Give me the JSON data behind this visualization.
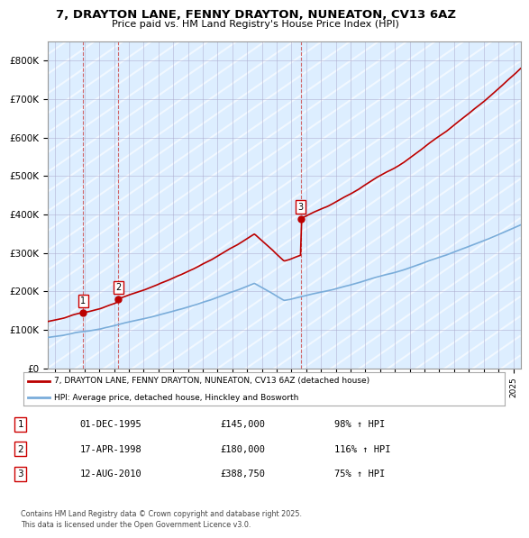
{
  "title": "7, DRAYTON LANE, FENNY DRAYTON, NUNEATON, CV13 6AZ",
  "subtitle": "Price paid vs. HM Land Registry's House Price Index (HPI)",
  "ylim": [
    0,
    850000
  ],
  "yticks": [
    0,
    100000,
    200000,
    300000,
    400000,
    500000,
    600000,
    700000,
    800000
  ],
  "ytick_labels": [
    "£0",
    "£100K",
    "£200K",
    "£300K",
    "£400K",
    "£500K",
    "£600K",
    "£700K",
    "£800K"
  ],
  "xmin": 1993.5,
  "xmax": 2025.5,
  "sales": [
    {
      "date_num": 1995.92,
      "price": 145000,
      "label": "1"
    },
    {
      "date_num": 1998.29,
      "price": 180000,
      "label": "2"
    },
    {
      "date_num": 2010.62,
      "price": 388750,
      "label": "3"
    }
  ],
  "sale_color": "#bb0000",
  "hpi_color": "#7aadda",
  "legend_sale": "7, DRAYTON LANE, FENNY DRAYTON, NUNEATON, CV13 6AZ (detached house)",
  "legend_hpi": "HPI: Average price, detached house, Hinckley and Bosworth",
  "table_rows": [
    {
      "num": "1",
      "date": "01-DEC-1995",
      "price": "£145,000",
      "change": "98% ↑ HPI"
    },
    {
      "num": "2",
      "date": "17-APR-1998",
      "price": "£180,000",
      "change": "116% ↑ HPI"
    },
    {
      "num": "3",
      "date": "12-AUG-2010",
      "price": "£388,750",
      "change": "75% ↑ HPI"
    }
  ],
  "footnote": "Contains HM Land Registry data © Crown copyright and database right 2025.\nThis data is licensed under the Open Government Licence v3.0.",
  "bg_color": "#ffffff",
  "plot_bg": "#ddeeff",
  "hatch_bg": "#c8d8e8",
  "grid_color": "#aaaacc"
}
